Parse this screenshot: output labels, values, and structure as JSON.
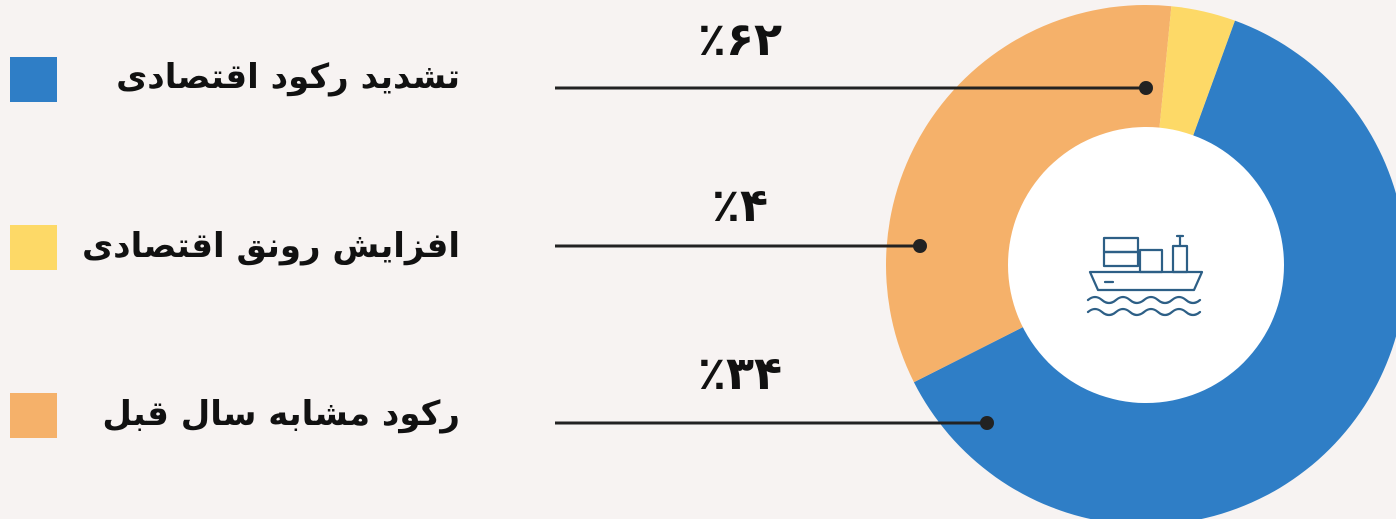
{
  "colors": {
    "background": "#f7f3f2",
    "blue": "#2f7ec6",
    "yellow": "#fdd967",
    "orange": "#f5b16a",
    "line": "#222222",
    "icon": "#2d5f86"
  },
  "center_icon": "cargo-ship-icon",
  "chart_data": {
    "type": "pie",
    "donut": true,
    "categories": [
      "تشدید رکود اقتصادی",
      "افزایش رونق اقتصادی",
      "رکود مشابه سال قبل"
    ],
    "values": [
      62,
      4,
      34
    ],
    "value_labels": [
      "٪۶۲",
      "٪۴",
      "٪۳۴"
    ],
    "colors": [
      "#2f7ec6",
      "#fdd967",
      "#f5b16a"
    ],
    "legend_position": "left"
  }
}
